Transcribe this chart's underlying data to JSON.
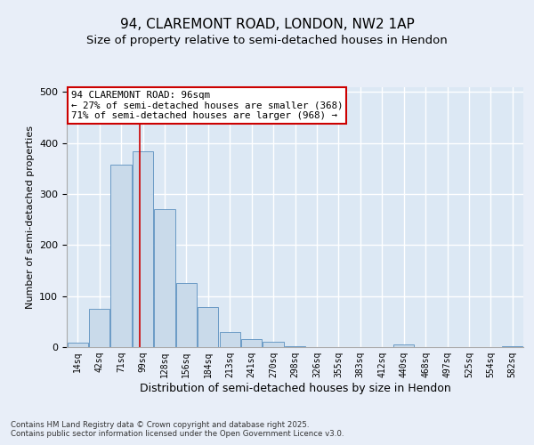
{
  "title_line1": "94, CLAREMONT ROAD, LONDON, NW2 1AP",
  "title_line2": "Size of property relative to semi-detached houses in Hendon",
  "xlabel": "Distribution of semi-detached houses by size in Hendon",
  "ylabel": "Number of semi-detached properties",
  "categories": [
    "14sq",
    "42sq",
    "71sq",
    "99sq",
    "128sq",
    "156sq",
    "184sq",
    "213sq",
    "241sq",
    "270sq",
    "298sq",
    "326sq",
    "355sq",
    "383sq",
    "412sq",
    "440sq",
    "468sq",
    "497sq",
    "525sq",
    "554sq",
    "582sq"
  ],
  "values": [
    8,
    75,
    357,
    383,
    271,
    125,
    78,
    29,
    16,
    11,
    1,
    0,
    0,
    0,
    0,
    5,
    0,
    0,
    0,
    0,
    2
  ],
  "bar_color": "#c9daea",
  "bar_edge_color": "#5a8fbf",
  "vline_x": 2.85,
  "vline_color": "#cc0000",
  "annotation_text": "94 CLAREMONT ROAD: 96sqm\n← 27% of semi-detached houses are smaller (368)\n71% of semi-detached houses are larger (968) →",
  "annotation_box_facecolor": "#ffffff",
  "annotation_box_edgecolor": "#cc0000",
  "footer_text": "Contains HM Land Registry data © Crown copyright and database right 2025.\nContains public sector information licensed under the Open Government Licence v3.0.",
  "ylim": [
    0,
    510
  ],
  "fig_background_color": "#e8eef8",
  "axes_background_color": "#dce8f4",
  "grid_color": "#ffffff",
  "title_fontsize": 11,
  "subtitle_fontsize": 9.5,
  "tick_fontsize": 7,
  "ylabel_fontsize": 8,
  "xlabel_fontsize": 9,
  "annotation_fontsize": 7.8,
  "footer_fontsize": 6.2
}
